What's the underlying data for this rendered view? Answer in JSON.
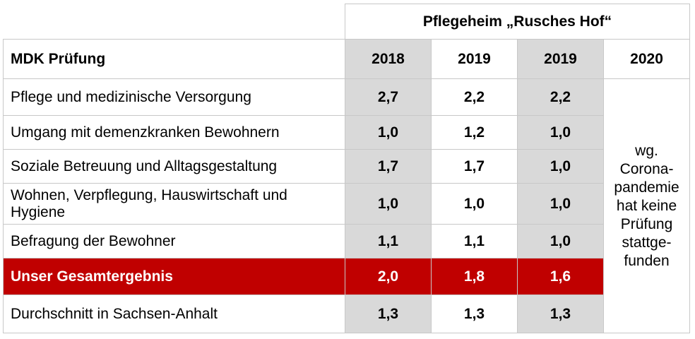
{
  "facility_title": "Pflegeheim „Rusches Hof“",
  "header": {
    "label": "MDK Prüfung",
    "years": [
      "2018",
      "2019",
      "2019",
      "2020"
    ]
  },
  "rows": [
    {
      "label": "Pflege und medizinische Versorgung",
      "values": [
        "2,7",
        "2,2",
        "2,2"
      ]
    },
    {
      "label": "Umgang mit demenzkranken Bewohnern",
      "values": [
        "1,0",
        "1,2",
        "1,0"
      ]
    },
    {
      "label": "Soziale Betreuung und Alltagsgestaltung",
      "values": [
        "1,7",
        "1,7",
        "1,0"
      ]
    },
    {
      "label": "Wohnen, Verpflegung, Hauswirtschaft und Hygiene",
      "values": [
        "1,0",
        "1,0",
        "1,0"
      ]
    },
    {
      "label": "Befragung der Bewohner",
      "values": [
        "1,1",
        "1,1",
        "1,0"
      ]
    }
  ],
  "total": {
    "label": "Unser Gesamtergebnis",
    "values": [
      "2,0",
      "1,8",
      "1,6"
    ]
  },
  "average": {
    "label": "Durchschnitt in Sachsen-Anhalt",
    "values": [
      "1,3",
      "1,3",
      "1,3"
    ]
  },
  "note_2020": [
    "wg.",
    "Corona-",
    "pandemie",
    "hat keine",
    "Prüfung",
    "stattge-",
    "funden"
  ],
  "colors": {
    "highlight": "#c00000",
    "shade": "#d9d9d9",
    "border": "#c8c8c8"
  }
}
